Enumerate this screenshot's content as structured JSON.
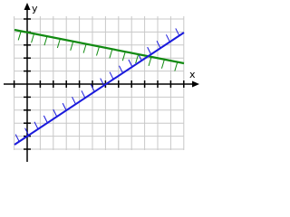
{
  "axes": {
    "x_label": "x",
    "y_label": "y"
  }
}
